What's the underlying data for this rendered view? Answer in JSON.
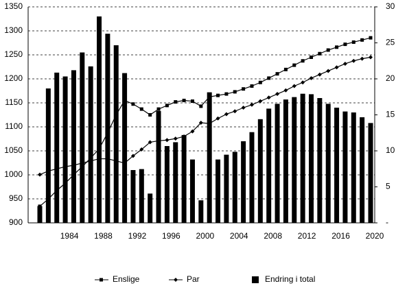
{
  "chart_data": {
    "type": "bar",
    "categories": [
      null,
      null,
      null,
      "1984",
      null,
      null,
      null,
      "1988",
      null,
      null,
      null,
      "1992",
      null,
      null,
      null,
      "1996",
      null,
      null,
      null,
      "2000",
      null,
      null,
      null,
      "2004",
      null,
      null,
      null,
      "2008",
      null,
      null,
      null,
      "2012",
      null,
      null,
      null,
      "2016",
      null,
      null,
      null,
      "2020"
    ],
    "series": [
      {
        "name": "Enslige",
        "type": "line",
        "axis": "y2",
        "color": "#000000",
        "marker": "square",
        "values": [
          2.3,
          3.3,
          4.5,
          5.5,
          6.7,
          7.8,
          9.0,
          10.3,
          12.5,
          15.0,
          17.0,
          16.5,
          15.8,
          15.0,
          15.8,
          16.3,
          16.8,
          17.0,
          16.9,
          16.2,
          17.5,
          17.7,
          17.9,
          18.2,
          18.6,
          19.0,
          19.5,
          20.1,
          20.7,
          21.3,
          21.9,
          22.5,
          23.0,
          23.5,
          24.0,
          24.4,
          24.8,
          25.1,
          25.4,
          25.7
        ]
      },
      {
        "name": "Par",
        "type": "line",
        "axis": "y2",
        "color": "#000000",
        "marker": "diamond",
        "values": [
          6.7,
          7.2,
          7.5,
          7.8,
          8.0,
          8.3,
          8.6,
          8.9,
          8.9,
          8.6,
          8.3,
          9.3,
          10.2,
          11.2,
          11.4,
          11.5,
          11.7,
          12.0,
          12.7,
          13.9,
          13.8,
          14.5,
          15.1,
          15.5,
          16.0,
          16.4,
          16.9,
          17.4,
          17.9,
          18.4,
          19.0,
          19.5,
          20.1,
          20.6,
          21.1,
          21.6,
          22.1,
          22.5,
          22.8,
          23.0
        ]
      },
      {
        "name": "Endring i total",
        "type": "bar",
        "axis": "y",
        "color": "#000000",
        "values": [
          935,
          1180,
          1213,
          1205,
          1218,
          1255,
          1226,
          1330,
          1294,
          1270,
          1212,
          1010,
          1012,
          961,
          1133,
          1060,
          1068,
          1083,
          1032,
          947,
          1172,
          1032,
          1042,
          1048,
          1070,
          1089,
          1116,
          1138,
          1148,
          1157,
          1162,
          1169,
          1168,
          1160,
          1148,
          1140,
          1132,
          1130,
          1120,
          1108
        ]
      }
    ],
    "ylim": [
      900,
      1350
    ],
    "yticks": [
      900,
      950,
      1000,
      1050,
      1100,
      1150,
      1200,
      1250,
      1300,
      1350
    ],
    "y2lim": [
      0,
      30
    ],
    "y2ticks": [
      {
        "value": 0,
        "label": "-"
      },
      5,
      10,
      15,
      20,
      25,
      30
    ],
    "grid": true,
    "legend": "bottom"
  }
}
